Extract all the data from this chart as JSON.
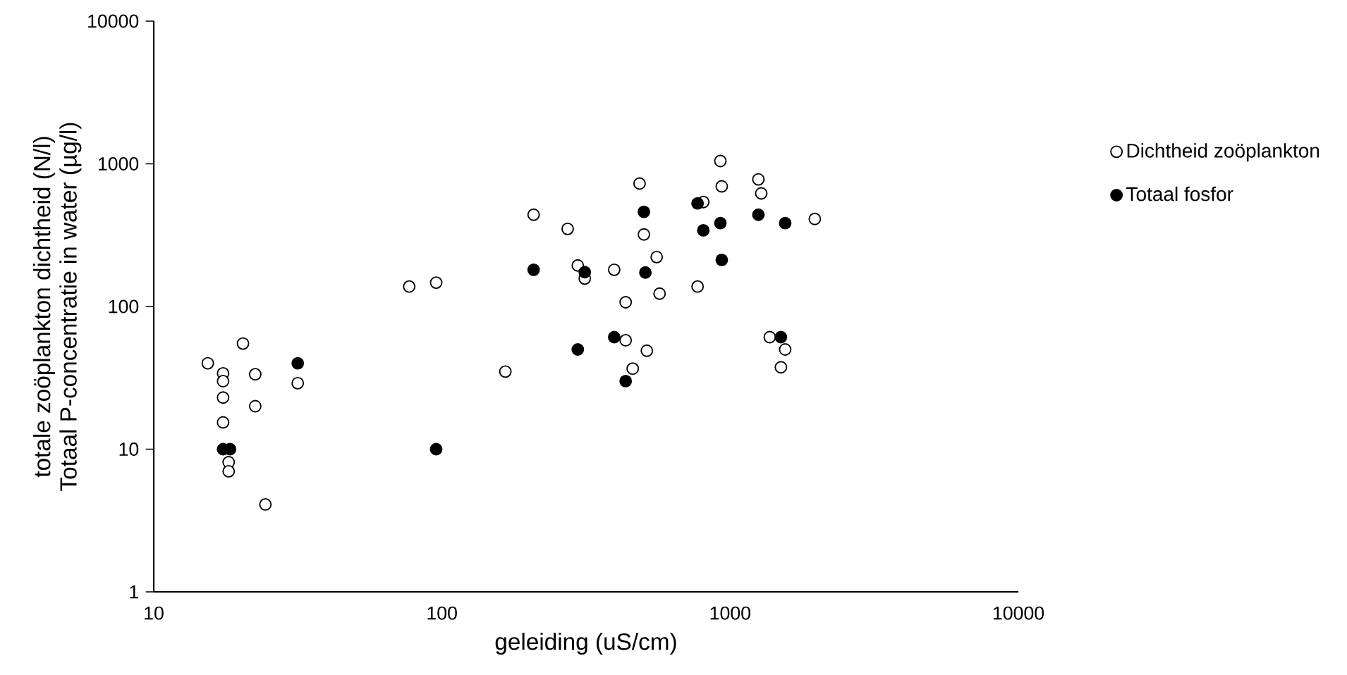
{
  "chart_data": {
    "type": "scatter",
    "xlabel": "geleiding (uS/cm)",
    "ylabel": [
      "totale zoöplankton dichtheid (N/l)",
      "Totaal P-concentratie in water (µg/l)"
    ],
    "log": "xy",
    "grid": false,
    "legend": "right",
    "xlim": [
      10,
      10000
    ],
    "ylim": [
      1,
      10000
    ],
    "xticks": [
      10,
      100,
      1000,
      10000
    ],
    "yticks": [
      1,
      10,
      100,
      1000,
      10000
    ],
    "series": [
      {
        "name": "Dichtheid zoöplankton",
        "color": "#ffffff",
        "x": [
          15.4,
          17.4,
          17.4,
          17.4,
          17.4,
          20.4,
          22.5,
          22.5,
          18.2,
          18.2,
          24.4,
          31.6,
          77,
          95.5,
          166,
          208,
          273,
          296,
          313,
          396,
          925,
          485,
          935,
          1253,
          1282,
          807,
          1967,
          502,
          556,
          569,
          771,
          434,
          434,
          514,
          459,
          1372,
          1552,
          1500
        ],
        "values": [
          40,
          34,
          30,
          23,
          15.4,
          55,
          33.5,
          20,
          8.1,
          7,
          4.1,
          29,
          138,
          147,
          35,
          440,
          350,
          194,
          157,
          181,
          1047,
          727,
          695,
          778,
          620,
          540,
          411,
          320,
          222,
          123,
          138,
          107,
          58,
          49,
          36.7,
          61,
          50,
          37.5
        ]
      },
      {
        "name": "Totaal fosfor",
        "color": "#000000",
        "x": [
          17.4,
          18.4,
          95.5,
          31.6,
          208,
          296,
          313,
          396,
          434,
          502,
          508,
          771,
          807,
          925,
          935,
          1253,
          1552,
          1500
        ],
        "values": [
          10,
          10,
          10,
          40,
          181,
          50,
          174,
          61,
          30,
          461,
          173,
          528,
          342,
          384,
          212,
          440,
          384,
          61
        ]
      }
    ]
  }
}
